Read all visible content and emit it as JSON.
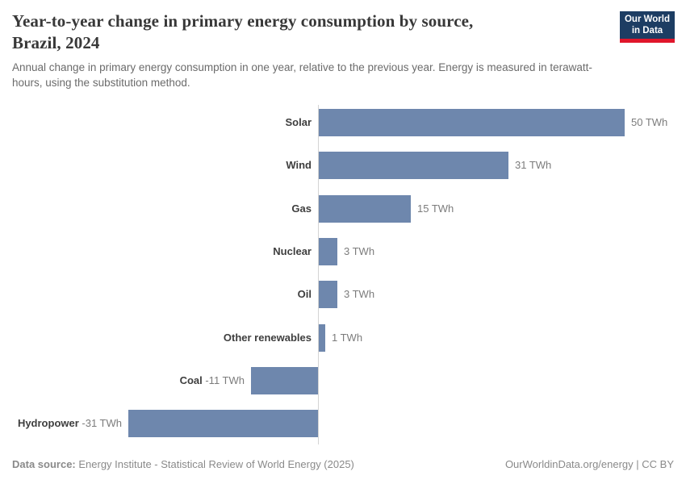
{
  "header": {
    "title_line1": "Year-to-year change in primary energy consumption by source,",
    "title_line2": "Brazil, 2024",
    "subtitle": "Annual change in primary energy consumption in one year, relative to the previous year. Energy is measured in terawatt-hours, using the substitution method.",
    "logo": {
      "line1": "Our World",
      "line2": "in Data",
      "bg_color": "#1d3d63",
      "accent_color": "#e0162b"
    }
  },
  "chart_data": {
    "type": "bar",
    "orientation": "horizontal",
    "title": "Year-to-year change in primary energy consumption by source, Brazil, 2024",
    "unit": "TWh",
    "categories": [
      "Solar",
      "Wind",
      "Gas",
      "Nuclear",
      "Oil",
      "Other renewables",
      "Coal",
      "Hydropower"
    ],
    "values": [
      50,
      31,
      15,
      3,
      3,
      1,
      -11,
      -31
    ],
    "value_labels": [
      "50 TWh",
      "31 TWh",
      "15 TWh",
      "3 TWh",
      "3 TWh",
      "1 TWh",
      "-11 TWh",
      "-31 TWh"
    ],
    "xlim": [
      -31,
      50
    ],
    "grid": false,
    "legend": "none",
    "colors": {
      "bar": "#6e87ad",
      "axis": "#d4d4d4",
      "category_label": "#3e3e3e",
      "value_label": "#7c7c7c"
    }
  },
  "footer": {
    "data_source_label": "Data source:",
    "data_source_value": " Energy Institute - Statistical Review of World Energy (2025)",
    "credit": "OurWorldinData.org/energy | CC BY"
  }
}
